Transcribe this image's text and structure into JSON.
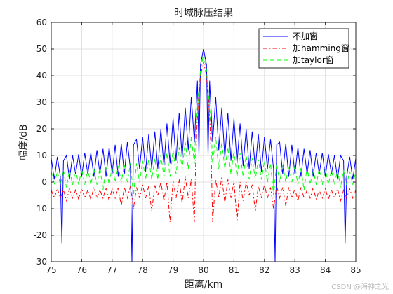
{
  "chart_data": {
    "type": "line",
    "title": "时域脉压结果",
    "xlabel": "距离/km",
    "ylabel": "幅度/dB",
    "xlim": [
      75,
      85
    ],
    "ylim": [
      -30,
      60
    ],
    "xticks": [
      75,
      76,
      77,
      78,
      79,
      80,
      81,
      82,
      83,
      84,
      85
    ],
    "yticks": [
      -30,
      -20,
      -10,
      0,
      10,
      20,
      30,
      40,
      50,
      60
    ],
    "grid": true,
    "legend_position": "top-right",
    "series": [
      {
        "name": "不加窗",
        "color": "#0000ff",
        "dash": "solid",
        "points": [
          [
            75.0,
            9
          ],
          [
            75.1,
            1
          ],
          [
            75.2,
            9.5
          ],
          [
            75.3,
            2
          ],
          [
            75.35,
            -23
          ],
          [
            75.4,
            8
          ],
          [
            75.5,
            10
          ],
          [
            75.6,
            1
          ],
          [
            75.7,
            10
          ],
          [
            75.8,
            3
          ],
          [
            75.9,
            10.5
          ],
          [
            76.0,
            2
          ],
          [
            76.1,
            11
          ],
          [
            76.2,
            3
          ],
          [
            76.3,
            11
          ],
          [
            76.4,
            2
          ],
          [
            76.5,
            12
          ],
          [
            76.6,
            3
          ],
          [
            76.7,
            12.5
          ],
          [
            76.8,
            2
          ],
          [
            76.9,
            13
          ],
          [
            77.0,
            3
          ],
          [
            77.1,
            14
          ],
          [
            77.2,
            2
          ],
          [
            77.3,
            14.5
          ],
          [
            77.4,
            3
          ],
          [
            77.5,
            15
          ],
          [
            77.6,
            5
          ],
          [
            77.65,
            -30
          ],
          [
            77.7,
            14
          ],
          [
            77.8,
            16
          ],
          [
            77.9,
            5
          ],
          [
            78.0,
            17
          ],
          [
            78.1,
            4
          ],
          [
            78.2,
            18
          ],
          [
            78.3,
            5
          ],
          [
            78.4,
            19
          ],
          [
            78.5,
            5
          ],
          [
            78.6,
            20
          ],
          [
            78.7,
            6
          ],
          [
            78.8,
            22
          ],
          [
            78.9,
            7
          ],
          [
            79.0,
            24
          ],
          [
            79.1,
            8
          ],
          [
            79.2,
            26
          ],
          [
            79.3,
            9
          ],
          [
            79.4,
            28
          ],
          [
            79.5,
            12
          ],
          [
            79.6,
            32
          ],
          [
            79.7,
            15
          ],
          [
            79.8,
            38
          ],
          [
            79.85,
            10
          ],
          [
            79.9,
            44
          ],
          [
            80.0,
            50
          ],
          [
            80.1,
            44
          ],
          [
            80.15,
            10
          ],
          [
            80.2,
            38
          ],
          [
            80.3,
            15
          ],
          [
            80.4,
            32
          ],
          [
            80.5,
            12
          ],
          [
            80.6,
            28
          ],
          [
            80.7,
            9
          ],
          [
            80.8,
            26
          ],
          [
            80.9,
            8
          ],
          [
            81.0,
            24
          ],
          [
            81.1,
            7
          ],
          [
            81.2,
            22
          ],
          [
            81.3,
            6
          ],
          [
            81.4,
            20
          ],
          [
            81.5,
            5
          ],
          [
            81.6,
            19
          ],
          [
            81.7,
            5
          ],
          [
            81.8,
            18
          ],
          [
            81.9,
            4
          ],
          [
            82.0,
            17
          ],
          [
            82.1,
            5
          ],
          [
            82.2,
            16
          ],
          [
            82.3,
            5
          ],
          [
            82.35,
            -30
          ],
          [
            82.4,
            14
          ],
          [
            82.5,
            15
          ],
          [
            82.6,
            3
          ],
          [
            82.7,
            14.5
          ],
          [
            82.8,
            2
          ],
          [
            82.9,
            14
          ],
          [
            83.0,
            3
          ],
          [
            83.1,
            13
          ],
          [
            83.2,
            2
          ],
          [
            83.3,
            12.5
          ],
          [
            83.4,
            3
          ],
          [
            83.5,
            12
          ],
          [
            83.6,
            2
          ],
          [
            83.7,
            11
          ],
          [
            83.8,
            3
          ],
          [
            83.9,
            11
          ],
          [
            84.0,
            2
          ],
          [
            84.1,
            10.5
          ],
          [
            84.2,
            3
          ],
          [
            84.3,
            10
          ],
          [
            84.4,
            1
          ],
          [
            84.5,
            10
          ],
          [
            84.6,
            8
          ],
          [
            84.65,
            -23
          ],
          [
            84.7,
            2
          ],
          [
            84.8,
            9.5
          ],
          [
            84.9,
            1
          ],
          [
            85.0,
            9
          ]
        ]
      },
      {
        "name": "加hamming窗",
        "color": "#ff0000",
        "dash": "dashdot",
        "points": [
          [
            75.0,
            -3
          ],
          [
            75.1,
            -6
          ],
          [
            75.2,
            -2.5
          ],
          [
            75.3,
            -6
          ],
          [
            75.4,
            -3
          ],
          [
            75.5,
            -7
          ],
          [
            75.6,
            -2.5
          ],
          [
            75.7,
            -6
          ],
          [
            75.8,
            -3
          ],
          [
            75.9,
            -6.5
          ],
          [
            76.0,
            -2.5
          ],
          [
            76.1,
            -6
          ],
          [
            76.2,
            -3
          ],
          [
            76.3,
            -6.5
          ],
          [
            76.4,
            -2
          ],
          [
            76.5,
            -6
          ],
          [
            76.6,
            -3
          ],
          [
            76.7,
            -6
          ],
          [
            76.8,
            -2
          ],
          [
            76.9,
            -7
          ],
          [
            77.0,
            -2.5
          ],
          [
            77.1,
            -6
          ],
          [
            77.2,
            -2
          ],
          [
            77.3,
            -9
          ],
          [
            77.4,
            -2
          ],
          [
            77.5,
            -6
          ],
          [
            77.6,
            -1.5
          ],
          [
            77.7,
            -10
          ],
          [
            77.8,
            -2
          ],
          [
            77.9,
            -6
          ],
          [
            78.0,
            -1
          ],
          [
            78.1,
            -6
          ],
          [
            78.2,
            -1.5
          ],
          [
            78.3,
            -11
          ],
          [
            78.4,
            -1
          ],
          [
            78.5,
            -5
          ],
          [
            78.6,
            0
          ],
          [
            78.7,
            -7
          ],
          [
            78.8,
            0
          ],
          [
            78.9,
            -15
          ],
          [
            79.0,
            0.5
          ],
          [
            79.1,
            -6
          ],
          [
            79.2,
            1
          ],
          [
            79.3,
            -8
          ],
          [
            79.4,
            2
          ],
          [
            79.5,
            -6
          ],
          [
            79.6,
            1
          ],
          [
            79.7,
            -15
          ],
          [
            79.75,
            10
          ],
          [
            79.8,
            25
          ],
          [
            79.9,
            40
          ],
          [
            80.0,
            45
          ],
          [
            80.1,
            40
          ],
          [
            80.2,
            25
          ],
          [
            80.25,
            10
          ],
          [
            80.3,
            -15
          ],
          [
            80.4,
            1
          ],
          [
            80.5,
            -6
          ],
          [
            80.6,
            2
          ],
          [
            80.7,
            -8
          ],
          [
            80.8,
            1
          ],
          [
            80.9,
            -6
          ],
          [
            81.0,
            0.5
          ],
          [
            81.1,
            -15
          ],
          [
            81.2,
            0
          ],
          [
            81.3,
            -7
          ],
          [
            81.4,
            0
          ],
          [
            81.5,
            -5
          ],
          [
            81.6,
            -1
          ],
          [
            81.7,
            -11
          ],
          [
            81.8,
            -1.5
          ],
          [
            81.9,
            -6
          ],
          [
            82.0,
            -1
          ],
          [
            82.1,
            -6
          ],
          [
            82.2,
            -2
          ],
          [
            82.3,
            -10
          ],
          [
            82.4,
            -1.5
          ],
          [
            82.5,
            -6
          ],
          [
            82.6,
            -2
          ],
          [
            82.7,
            -9
          ],
          [
            82.8,
            -2
          ],
          [
            82.9,
            -6
          ],
          [
            83.0,
            -2.5
          ],
          [
            83.1,
            -7
          ],
          [
            83.2,
            -2
          ],
          [
            83.3,
            -6
          ],
          [
            83.4,
            -3
          ],
          [
            83.5,
            -6
          ],
          [
            83.6,
            -2
          ],
          [
            83.7,
            -6.5
          ],
          [
            83.8,
            -3
          ],
          [
            83.9,
            -6
          ],
          [
            84.0,
            -2.5
          ],
          [
            84.1,
            -6.5
          ],
          [
            84.2,
            -3
          ],
          [
            84.3,
            -6
          ],
          [
            84.4,
            -2.5
          ],
          [
            84.5,
            -7
          ],
          [
            84.6,
            -3
          ],
          [
            84.7,
            -6
          ],
          [
            84.8,
            -2.5
          ],
          [
            84.9,
            -6
          ],
          [
            85.0,
            -3
          ]
        ]
      },
      {
        "name": "加taylor窗",
        "color": "#00ff00",
        "dash": "dashed",
        "points": [
          [
            75.0,
            4
          ],
          [
            75.1,
            -1
          ],
          [
            75.2,
            4
          ],
          [
            75.3,
            -1
          ],
          [
            75.4,
            4.5
          ],
          [
            75.5,
            -2
          ],
          [
            75.6,
            4.5
          ],
          [
            75.7,
            -1
          ],
          [
            75.8,
            4.5
          ],
          [
            75.9,
            -1
          ],
          [
            76.0,
            5
          ],
          [
            76.1,
            -1
          ],
          [
            76.2,
            5
          ],
          [
            76.3,
            -1
          ],
          [
            76.4,
            5
          ],
          [
            76.5,
            -1
          ],
          [
            76.6,
            5.5
          ],
          [
            76.7,
            -3
          ],
          [
            76.8,
            5.5
          ],
          [
            76.9,
            -1
          ],
          [
            77.0,
            6
          ],
          [
            77.1,
            0
          ],
          [
            77.2,
            6
          ],
          [
            77.3,
            0
          ],
          [
            77.4,
            6.5
          ],
          [
            77.5,
            0
          ],
          [
            77.6,
            7
          ],
          [
            77.7,
            -5
          ],
          [
            77.8,
            7
          ],
          [
            77.9,
            0
          ],
          [
            78.0,
            8
          ],
          [
            78.1,
            1
          ],
          [
            78.2,
            8.5
          ],
          [
            78.3,
            1
          ],
          [
            78.4,
            9
          ],
          [
            78.5,
            1
          ],
          [
            78.6,
            10
          ],
          [
            78.7,
            2
          ],
          [
            78.8,
            11
          ],
          [
            78.9,
            2
          ],
          [
            79.0,
            12
          ],
          [
            79.1,
            3
          ],
          [
            79.2,
            13
          ],
          [
            79.3,
            5
          ],
          [
            79.4,
            15
          ],
          [
            79.5,
            5
          ],
          [
            79.6,
            17
          ],
          [
            79.7,
            7
          ],
          [
            79.75,
            20
          ],
          [
            79.8,
            28
          ],
          [
            79.9,
            42
          ],
          [
            80.0,
            48
          ],
          [
            80.1,
            42
          ],
          [
            80.2,
            28
          ],
          [
            80.25,
            20
          ],
          [
            80.3,
            7
          ],
          [
            80.4,
            17
          ],
          [
            80.5,
            5
          ],
          [
            80.6,
            15
          ],
          [
            80.7,
            5
          ],
          [
            80.8,
            13
          ],
          [
            80.9,
            3
          ],
          [
            81.0,
            12
          ],
          [
            81.1,
            2
          ],
          [
            81.2,
            11
          ],
          [
            81.3,
            2
          ],
          [
            81.4,
            10
          ],
          [
            81.5,
            1
          ],
          [
            81.6,
            9
          ],
          [
            81.7,
            1
          ],
          [
            81.8,
            8.5
          ],
          [
            81.9,
            1
          ],
          [
            82.0,
            8
          ],
          [
            82.1,
            0
          ],
          [
            82.2,
            7
          ],
          [
            82.3,
            -5
          ],
          [
            82.4,
            7
          ],
          [
            82.5,
            0
          ],
          [
            82.6,
            6.5
          ],
          [
            82.7,
            0
          ],
          [
            82.8,
            6
          ],
          [
            82.9,
            0
          ],
          [
            83.0,
            6
          ],
          [
            83.1,
            -1
          ],
          [
            83.2,
            5.5
          ],
          [
            83.3,
            -3
          ],
          [
            83.4,
            5.5
          ],
          [
            83.5,
            -1
          ],
          [
            83.6,
            5
          ],
          [
            83.7,
            -1
          ],
          [
            83.8,
            5
          ],
          [
            83.9,
            -1
          ],
          [
            84.0,
            5
          ],
          [
            84.1,
            -1
          ],
          [
            84.2,
            4.5
          ],
          [
            84.3,
            -1
          ],
          [
            84.4,
            4.5
          ],
          [
            84.5,
            -2
          ],
          [
            84.6,
            4.5
          ],
          [
            84.7,
            -1
          ],
          [
            84.8,
            4
          ],
          [
            84.9,
            -1
          ],
          [
            85.0,
            4
          ]
        ]
      }
    ]
  },
  "watermark": "CSDN @海神之光"
}
